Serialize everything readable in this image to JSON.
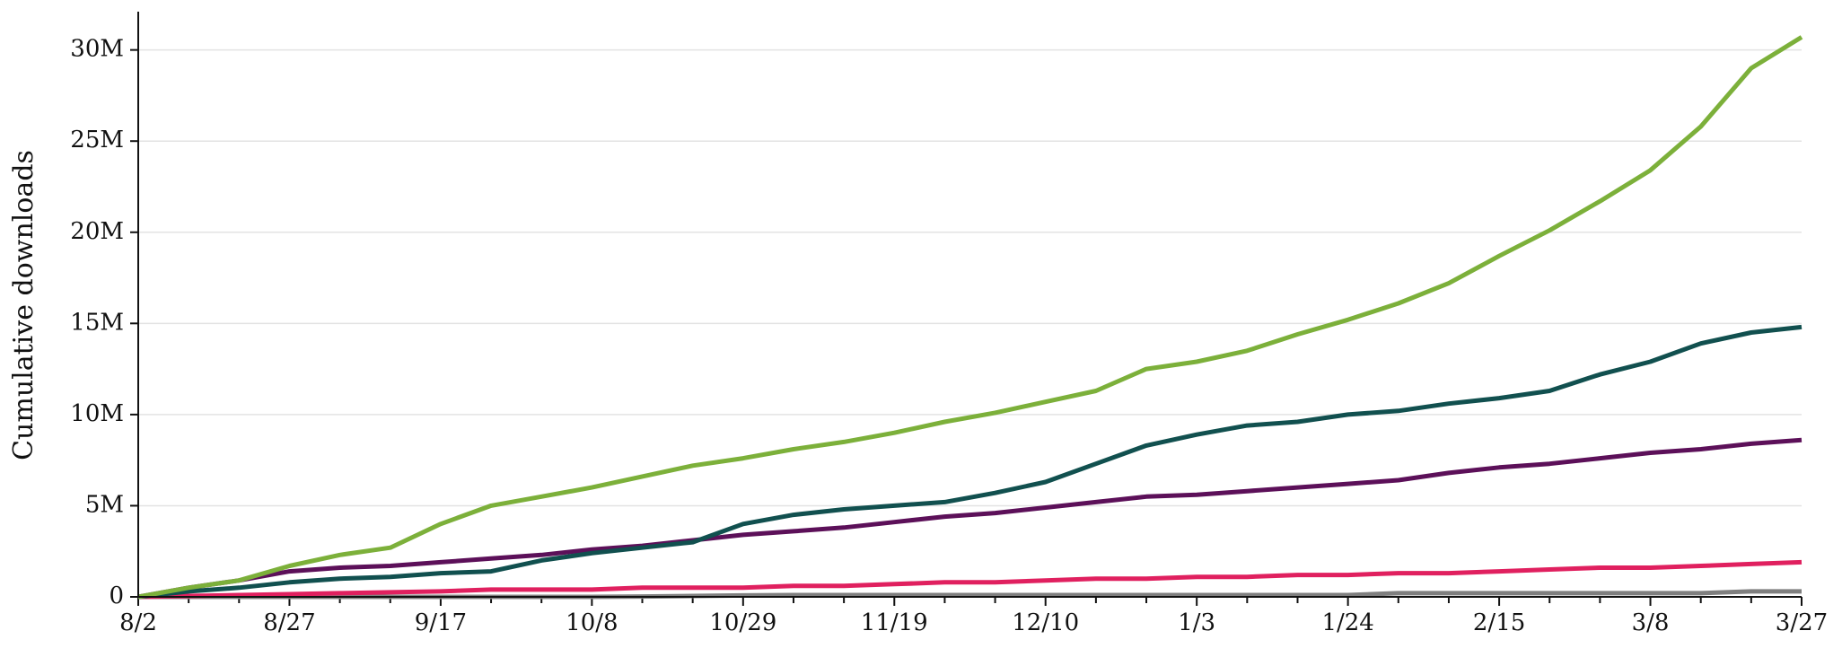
{
  "chart_data": {
    "type": "line",
    "y_label": "Cumulative downloads",
    "categories": [
      "8/2",
      null,
      null,
      "8/27",
      null,
      null,
      "9/17",
      null,
      null,
      "10/8",
      null,
      null,
      "10/29",
      null,
      null,
      "11/19",
      null,
      null,
      "12/10",
      null,
      null,
      "1/3",
      null,
      null,
      "1/24",
      null,
      null,
      "2/15",
      null,
      null,
      "3/8",
      null,
      null,
      "3/27"
    ],
    "series": [
      {
        "color": "#7cb03a",
        "values": [
          0,
          500000,
          900000,
          1700000,
          2300000,
          2700000,
          4000000,
          5000000,
          5500000,
          6000000,
          6600000,
          7200000,
          7600000,
          8100000,
          8500000,
          9000000,
          9600000,
          10100000,
          10700000,
          11300000,
          12500000,
          12900000,
          13500000,
          14400000,
          15200000,
          16100000,
          17200000,
          18700000,
          20100000,
          21700000,
          23400000,
          25800000,
          29000000,
          30700000
        ]
      },
      {
        "color": "#11504f",
        "values": [
          0,
          300000,
          500000,
          800000,
          1000000,
          1100000,
          1300000,
          1400000,
          2000000,
          2400000,
          2700000,
          3000000,
          4000000,
          4500000,
          4800000,
          5000000,
          5200000,
          5700000,
          6300000,
          7300000,
          8300000,
          8900000,
          9400000,
          9600000,
          10000000,
          10200000,
          10600000,
          10900000,
          11300000,
          12200000,
          12900000,
          13900000,
          14500000,
          14800000
        ]
      },
      {
        "color": "#5c1059",
        "values": [
          0,
          500000,
          900000,
          1400000,
          1600000,
          1700000,
          1900000,
          2100000,
          2300000,
          2600000,
          2800000,
          3100000,
          3400000,
          3600000,
          3800000,
          4100000,
          4400000,
          4600000,
          4900000,
          5200000,
          5500000,
          5600000,
          5800000,
          6000000,
          6200000,
          6400000,
          6800000,
          7100000,
          7300000,
          7600000,
          7900000,
          8100000,
          8400000,
          8600000
        ]
      },
      {
        "color": "#e0205f",
        "values": [
          0,
          50000,
          100000,
          150000,
          200000,
          250000,
          300000,
          400000,
          400000,
          400000,
          500000,
          500000,
          500000,
          600000,
          600000,
          700000,
          800000,
          800000,
          900000,
          1000000,
          1000000,
          1100000,
          1100000,
          1200000,
          1200000,
          1300000,
          1300000,
          1400000,
          1500000,
          1600000,
          1600000,
          1700000,
          1800000,
          1900000
        ]
      },
      {
        "color": "#7f7f7f",
        "values": [
          0,
          0,
          0,
          0,
          0,
          0,
          0,
          0,
          0,
          0,
          20000,
          50000,
          80000,
          100000,
          100000,
          100000,
          100000,
          100000,
          100000,
          100000,
          100000,
          100000,
          100000,
          100000,
          100000,
          200000,
          200000,
          200000,
          200000,
          200000,
          200000,
          200000,
          300000,
          300000
        ]
      }
    ],
    "ylim": [
      0,
      32100000
    ],
    "yticks": [
      0,
      {
        "value": 5000000,
        "label": "5M"
      },
      {
        "value": 10000000,
        "label": "10M"
      },
      {
        "value": 15000000,
        "label": "15M"
      },
      {
        "value": 20000000,
        "label": "20M"
      },
      {
        "value": 25000000,
        "label": "25M"
      },
      {
        "value": 30000000,
        "label": "30M"
      }
    ],
    "grid": true
  }
}
